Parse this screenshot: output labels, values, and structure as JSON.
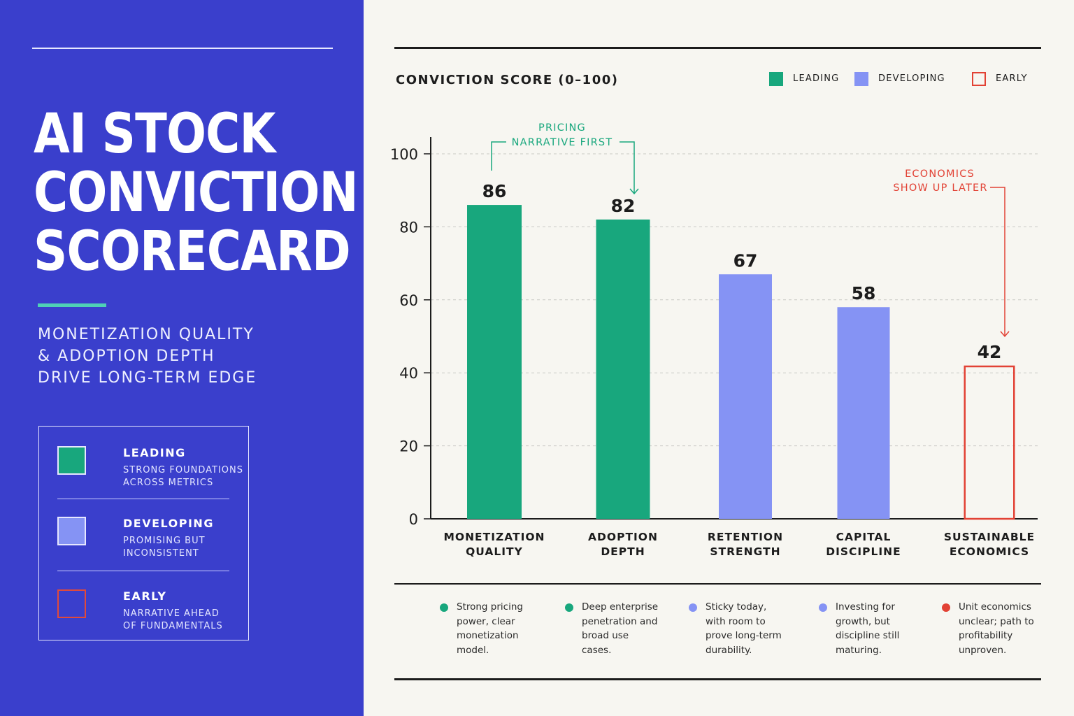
{
  "left_panel": {
    "title_lines": [
      "AI STOCK",
      "CONVICTION",
      "SCORECARD"
    ],
    "subtitle_lines": [
      "MONETIZATION QUALITY",
      "& ADOPTION DEPTH",
      "DRIVE LONG-TERM EDGE"
    ],
    "legend": [
      {
        "label": "LEADING",
        "desc_lines": [
          "STRONG FOUNDATIONS",
          "ACROSS METRICS"
        ],
        "color": "#18a77d"
      },
      {
        "label": "DEVELOPING",
        "desc_lines": [
          "PROMISING BUT",
          "INCONSISTENT"
        ],
        "color": "#8593f4"
      },
      {
        "label": "EARLY",
        "desc_lines": [
          "NARRATIVE AHEAD",
          "OF FUNDAMENTALS"
        ],
        "color": "#e04a3b"
      }
    ]
  },
  "top_legend": [
    {
      "label": "LEADING",
      "color": "#18a77d",
      "style": "filled"
    },
    {
      "label": "DEVELOPING",
      "color": "#8593f4",
      "style": "filled"
    },
    {
      "label": "EARLY",
      "color": "#e24235",
      "style": "outline"
    }
  ],
  "chart_data": {
    "type": "bar",
    "title": "CONVICTION SCORE (0–100)",
    "categories": [
      [
        "MONETIZATION",
        "QUALITY"
      ],
      [
        "ADOPTION",
        "DEPTH"
      ],
      [
        "RETENTION",
        "STRENGTH"
      ],
      [
        "CAPITAL",
        "DISCIPLINE"
      ],
      [
        "SUSTAINABLE",
        "ECONOMICS"
      ]
    ],
    "values": [
      86,
      82,
      67,
      58,
      42
    ],
    "value_labels": [
      "86",
      "82",
      "67",
      "58",
      "42"
    ],
    "tiers": [
      "LEADING",
      "LEADING",
      "DEVELOPING",
      "DEVELOPING",
      "EARLY"
    ],
    "ylim": [
      0,
      100
    ],
    "yticks": [
      0,
      20,
      40,
      60,
      80,
      100
    ],
    "ytick_labels": [
      "0",
      "20",
      "40",
      "60",
      "80",
      "100"
    ],
    "grid": true,
    "legend_position": "top-right",
    "annotations": [
      {
        "text_lines": [
          "PRICING",
          "NARRATIVE FIRST"
        ],
        "from": 0,
        "to": 1,
        "color": "#18a77d"
      },
      {
        "text_lines": [
          "ECONOMICS",
          "SHOW UP LATER"
        ],
        "to": 4,
        "color": "#e24235"
      }
    ]
  },
  "notes": [
    {
      "lines": [
        "Strong pricing",
        "power, clear",
        "monetization",
        "model."
      ],
      "color": "#18a77d"
    },
    {
      "lines": [
        "Deep enterprise",
        "penetration and",
        "broad use",
        "cases."
      ],
      "color": "#18a77d"
    },
    {
      "lines": [
        "Sticky today,",
        "with room to",
        "prove long-term",
        "durability."
      ],
      "color": "#8593f4"
    },
    {
      "lines": [
        "Investing for",
        "growth, but",
        "discipline still",
        "maturing."
      ],
      "color": "#8593f4"
    },
    {
      "lines": [
        "Unit economics",
        "unclear; path to",
        "profitability",
        "unproven."
      ],
      "color": "#e24235"
    }
  ]
}
